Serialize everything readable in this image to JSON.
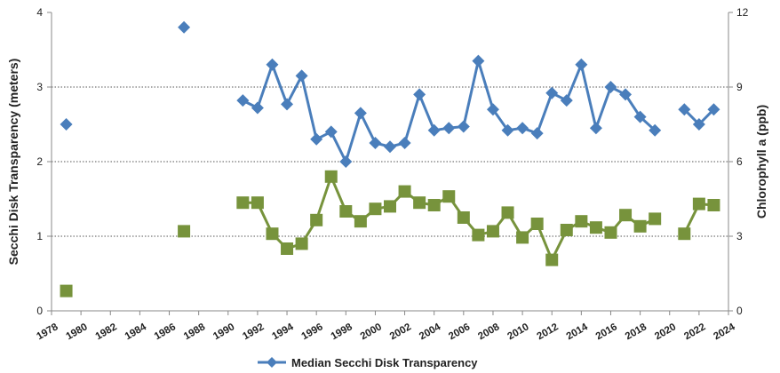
{
  "chart_data": {
    "type": "line",
    "xlabel": "",
    "ylabel": "Secchi Disk Transparency (meters)",
    "y2label": "Chlorophyll a (ppb)",
    "xlim": [
      1978,
      2024
    ],
    "ylim": [
      0,
      4
    ],
    "y2lim": [
      0,
      12
    ],
    "x_ticks": [
      "1978",
      "1980",
      "1982",
      "1984",
      "1986",
      "1988",
      "1990",
      "1992",
      "1994",
      "1996",
      "1998",
      "2000",
      "2002",
      "2004",
      "2006",
      "2008",
      "2010",
      "2012",
      "2014",
      "2016",
      "2018",
      "2020",
      "2022",
      "2024"
    ],
    "y_ticks": [
      "0",
      "1",
      "2",
      "3",
      "4"
    ],
    "y2_ticks": [
      "0",
      "3",
      "6",
      "9",
      "12"
    ],
    "grid": "horizontal dotted",
    "legend_position": "bottom",
    "series": [
      {
        "name": "Median Secchi Disk Transparency",
        "axis": "left",
        "color": "#4a7ebb",
        "marker": "diamond",
        "segments": [
          [
            [
              1979,
              2.5
            ]
          ],
          [
            [
              1987,
              3.8
            ]
          ],
          [
            [
              1991,
              2.82
            ],
            [
              1992,
              2.72
            ],
            [
              1993,
              3.3
            ],
            [
              1994,
              2.77
            ],
            [
              1995,
              3.15
            ],
            [
              1996,
              2.3
            ],
            [
              1997,
              2.4
            ],
            [
              1998,
              2.0
            ],
            [
              1999,
              2.65
            ],
            [
              2000,
              2.25
            ],
            [
              2001,
              2.2
            ],
            [
              2002,
              2.25
            ],
            [
              2003,
              2.9
            ],
            [
              2004,
              2.42
            ],
            [
              2005,
              2.45
            ],
            [
              2006,
              2.47
            ],
            [
              2007,
              3.35
            ],
            [
              2008,
              2.7
            ],
            [
              2009,
              2.42
            ],
            [
              2010,
              2.45
            ],
            [
              2011,
              2.38
            ],
            [
              2012,
              2.92
            ],
            [
              2013,
              2.82
            ],
            [
              2014,
              3.3
            ],
            [
              2015,
              2.45
            ],
            [
              2016,
              3.0
            ],
            [
              2017,
              2.9
            ],
            [
              2018,
              2.6
            ],
            [
              2019,
              2.42
            ]
          ],
          [
            [
              2021,
              2.7
            ],
            [
              2022,
              2.5
            ],
            [
              2023,
              2.7
            ]
          ]
        ]
      },
      {
        "name": "",
        "axis": "right",
        "color": "#77933c",
        "marker": "square",
        "segments": [
          [
            [
              1979,
              0.8
            ]
          ],
          [
            [
              1987,
              3.2
            ]
          ],
          [
            [
              1991,
              4.35
            ],
            [
              1992,
              4.35
            ],
            [
              1993,
              3.1
            ],
            [
              1994,
              2.5
            ],
            [
              1995,
              2.7
            ],
            [
              1996,
              3.65
            ],
            [
              1997,
              5.4
            ],
            [
              1998,
              4.0
            ],
            [
              1999,
              3.6
            ],
            [
              2000,
              4.1
            ],
            [
              2001,
              4.2
            ],
            [
              2002,
              4.8
            ],
            [
              2003,
              4.35
            ],
            [
              2004,
              4.25
            ],
            [
              2005,
              4.6
            ],
            [
              2006,
              3.75
            ],
            [
              2007,
              3.05
            ],
            [
              2008,
              3.2
            ],
            [
              2009,
              3.95
            ],
            [
              2010,
              2.95
            ],
            [
              2011,
              3.5
            ],
            [
              2012,
              2.05
            ],
            [
              2013,
              3.25
            ],
            [
              2014,
              3.6
            ],
            [
              2015,
              3.35
            ],
            [
              2016,
              3.15
            ],
            [
              2017,
              3.85
            ],
            [
              2018,
              3.4
            ],
            [
              2019,
              3.7
            ]
          ],
          [
            [
              2021,
              3.1
            ],
            [
              2022,
              4.3
            ],
            [
              2023,
              4.25
            ]
          ]
        ]
      }
    ],
    "legend": [
      "Median Secchi Disk Transparency"
    ]
  }
}
